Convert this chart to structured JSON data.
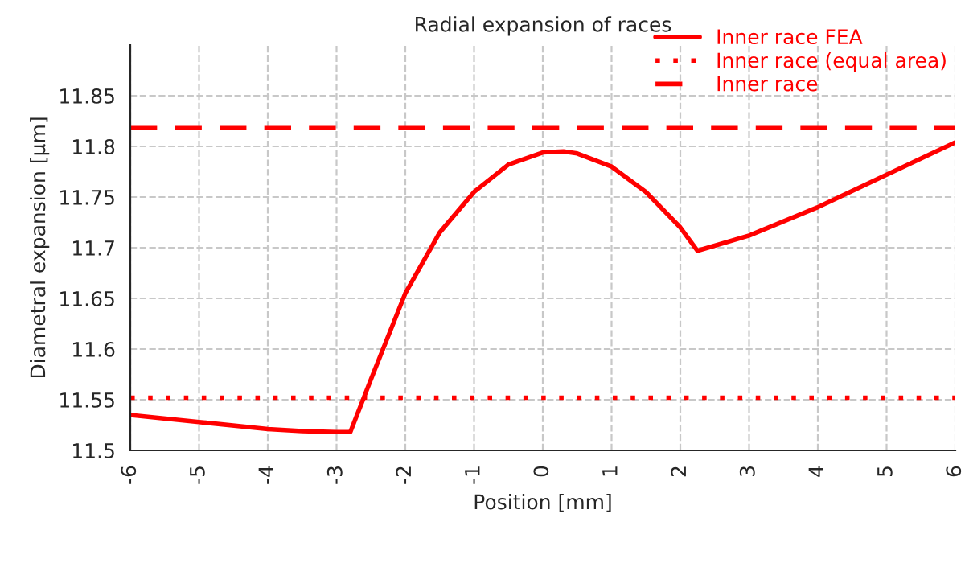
{
  "chart_data": {
    "type": "line",
    "title": "Radial expansion of races",
    "xlabel": "Position [mm]",
    "ylabel": "Diametral expansion [µm]",
    "series": [
      {
        "name": "Inner race FEA",
        "color": "#ff0000",
        "line_style": "solid",
        "x": [
          -6,
          -5,
          -4,
          -3.5,
          -3,
          -2.8,
          -2.5,
          -2,
          -1.5,
          -1,
          -0.5,
          0,
          0.3,
          0.5,
          1,
          1.5,
          2,
          2.25,
          3,
          4,
          5,
          6
        ],
        "values": [
          11.535,
          11.528,
          11.521,
          11.519,
          11.518,
          11.518,
          11.57,
          11.655,
          11.715,
          11.755,
          11.782,
          11.794,
          11.795,
          11.793,
          11.78,
          11.755,
          11.72,
          11.697,
          11.712,
          11.74,
          11.772,
          11.804
        ]
      },
      {
        "name": "Inner race (equal area)",
        "color": "#ff0000",
        "line_style": "dotted",
        "x": [
          -6,
          6
        ],
        "values": [
          11.552,
          11.552
        ]
      },
      {
        "name": "Inner race",
        "color": "#ff0000",
        "line_style": "dashed",
        "x": [
          -6,
          6
        ],
        "values": [
          11.818,
          11.818
        ]
      }
    ],
    "xlim": [
      -6,
      6
    ],
    "xticks": [
      -6,
      -5,
      -4,
      -3,
      -2,
      -1,
      0,
      1,
      2,
      3,
      4,
      5,
      6
    ],
    "ylim": [
      11.5,
      11.9
    ],
    "yticks": [
      11.5,
      11.55,
      11.6,
      11.65,
      11.7,
      11.75,
      11.8,
      11.85
    ],
    "grid": true,
    "legend": "top right"
  }
}
